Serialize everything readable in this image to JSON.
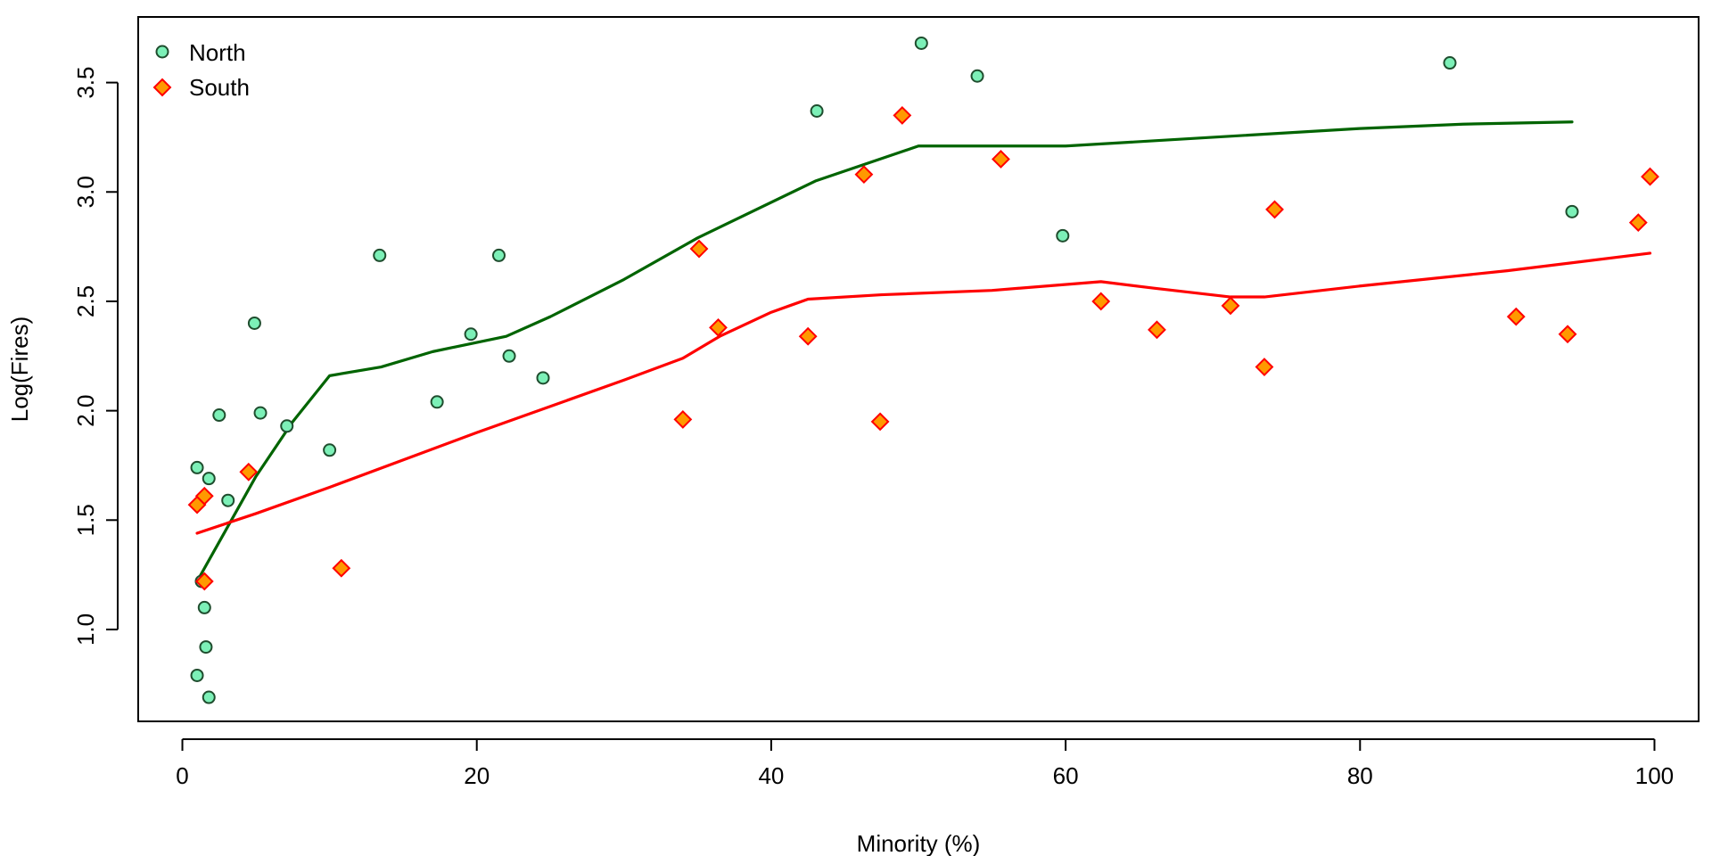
{
  "chart_data": {
    "type": "scatter",
    "title": "",
    "xlabel": "Minority (%)",
    "ylabel": "Log(Fires)",
    "xlim": [
      -3,
      103
    ],
    "ylim": [
      0.58,
      3.8
    ],
    "x_ticks": [
      0,
      20,
      40,
      60,
      80,
      100
    ],
    "y_ticks": [
      1.0,
      1.5,
      2.0,
      2.5,
      3.0,
      3.5
    ],
    "x_tick_labels": [
      "0",
      "20",
      "40",
      "60",
      "80",
      "100"
    ],
    "y_tick_labels": [
      "1.0",
      "1.5",
      "2.0",
      "2.5",
      "3.0",
      "3.5"
    ],
    "grid": false,
    "legend_position": "top-left",
    "series": [
      {
        "name": "North",
        "marker": "circle",
        "fill_color": "#7CF0B7",
        "edge_color": "#1F4D2E",
        "line_color": "#006400",
        "points": [
          [
            1.0,
            0.79
          ],
          [
            1.8,
            0.69
          ],
          [
            1.6,
            0.92
          ],
          [
            1.5,
            1.1
          ],
          [
            1.3,
            1.22
          ],
          [
            1.0,
            1.74
          ],
          [
            1.8,
            1.69
          ],
          [
            2.5,
            1.98
          ],
          [
            3.1,
            1.59
          ],
          [
            4.9,
            2.4
          ],
          [
            5.3,
            1.99
          ],
          [
            7.1,
            1.93
          ],
          [
            10.0,
            1.82
          ],
          [
            13.4,
            2.71
          ],
          [
            17.3,
            2.04
          ],
          [
            19.6,
            2.35
          ],
          [
            21.5,
            2.71
          ],
          [
            22.2,
            2.25
          ],
          [
            24.5,
            2.15
          ],
          [
            43.1,
            3.37
          ],
          [
            50.2,
            3.68
          ],
          [
            54.0,
            3.53
          ],
          [
            59.8,
            2.8
          ],
          [
            86.1,
            3.59
          ],
          [
            94.4,
            2.91
          ]
        ],
        "smooth": [
          [
            1.0,
            1.22
          ],
          [
            2.5,
            1.4
          ],
          [
            5.0,
            1.7
          ],
          [
            7.5,
            1.95
          ],
          [
            10.0,
            2.16
          ],
          [
            13.5,
            2.2
          ],
          [
            17.0,
            2.27
          ],
          [
            22.0,
            2.34
          ],
          [
            25.0,
            2.43
          ],
          [
            30.0,
            2.6
          ],
          [
            35.0,
            2.79
          ],
          [
            43.0,
            3.05
          ],
          [
            50.0,
            3.21
          ],
          [
            55.0,
            3.21
          ],
          [
            60.0,
            3.21
          ],
          [
            70.0,
            3.25
          ],
          [
            80.0,
            3.29
          ],
          [
            87.0,
            3.31
          ],
          [
            94.4,
            3.32
          ]
        ]
      },
      {
        "name": "South",
        "marker": "diamond",
        "fill_color": "#FF9900",
        "edge_color": "#FF0000",
        "line_color": "#FF0000",
        "points": [
          [
            1.0,
            1.57
          ],
          [
            1.5,
            1.61
          ],
          [
            1.5,
            1.22
          ],
          [
            4.5,
            1.72
          ],
          [
            10.8,
            1.28
          ],
          [
            34.0,
            1.96
          ],
          [
            35.1,
            2.74
          ],
          [
            36.4,
            2.38
          ],
          [
            42.5,
            2.34
          ],
          [
            46.3,
            3.08
          ],
          [
            47.4,
            1.95
          ],
          [
            48.9,
            3.35
          ],
          [
            55.6,
            3.15
          ],
          [
            62.4,
            2.5
          ],
          [
            66.2,
            2.37
          ],
          [
            71.2,
            2.48
          ],
          [
            73.5,
            2.2
          ],
          [
            74.2,
            2.92
          ],
          [
            90.6,
            2.43
          ],
          [
            94.1,
            2.35
          ],
          [
            98.9,
            2.86
          ],
          [
            99.7,
            3.07
          ]
        ],
        "smooth": [
          [
            1.0,
            1.44
          ],
          [
            5.0,
            1.53
          ],
          [
            10.0,
            1.65
          ],
          [
            20.0,
            1.9
          ],
          [
            30.0,
            2.14
          ],
          [
            34.0,
            2.24
          ],
          [
            36.5,
            2.34
          ],
          [
            40.0,
            2.45
          ],
          [
            42.5,
            2.51
          ],
          [
            47.5,
            2.53
          ],
          [
            55.0,
            2.55
          ],
          [
            62.4,
            2.59
          ],
          [
            66.0,
            2.56
          ],
          [
            71.2,
            2.52
          ],
          [
            73.5,
            2.52
          ],
          [
            80.0,
            2.57
          ],
          [
            90.0,
            2.64
          ],
          [
            99.7,
            2.72
          ]
        ]
      }
    ]
  }
}
